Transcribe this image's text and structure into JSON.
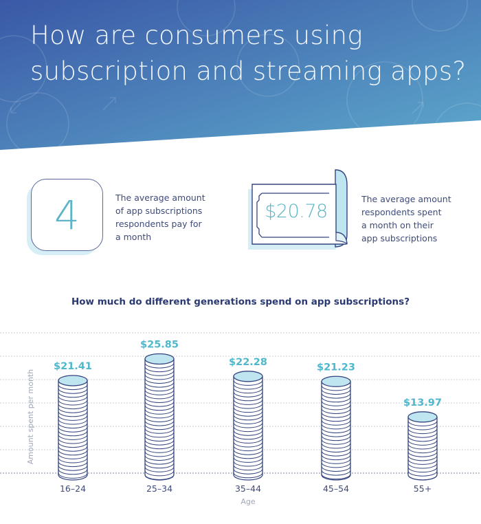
{
  "header": {
    "title_line1": "How are consumers using",
    "title_line2": "subscription and streaming apps?",
    "gradient_start": "#3a58a6",
    "gradient_end": "#5eaacd"
  },
  "stats": [
    {
      "value": "4",
      "description": [
        "The average amount",
        "of app subscriptions",
        "respondents pay for",
        "a month"
      ]
    },
    {
      "value": "$20.78",
      "description": [
        "The average amount",
        "respondents spent",
        "a month on their",
        "app subscriptions"
      ]
    }
  ],
  "colors": {
    "accent": "#4fb8cc",
    "navy": "#2b3a72",
    "coin_top": "#bfe5f0",
    "coin_stroke": "#34447e",
    "grid": "#c9cdd9"
  },
  "chart_data": {
    "type": "bar",
    "title": "How much do different generations spend on app subscriptions?",
    "xlabel": "Age",
    "ylabel": "Amount spent per month",
    "categories": [
      "16-24",
      "25-34",
      "35-44",
      "45-54",
      "55+"
    ],
    "values": [
      21.41,
      25.85,
      22.28,
      21.23,
      13.97
    ],
    "value_labels": [
      "$21.41",
      "$25.85",
      "$22.28",
      "$21.23",
      "$13.97"
    ],
    "ylim": [
      0,
      30
    ],
    "grid": true,
    "bar_style": "coin-stack"
  }
}
